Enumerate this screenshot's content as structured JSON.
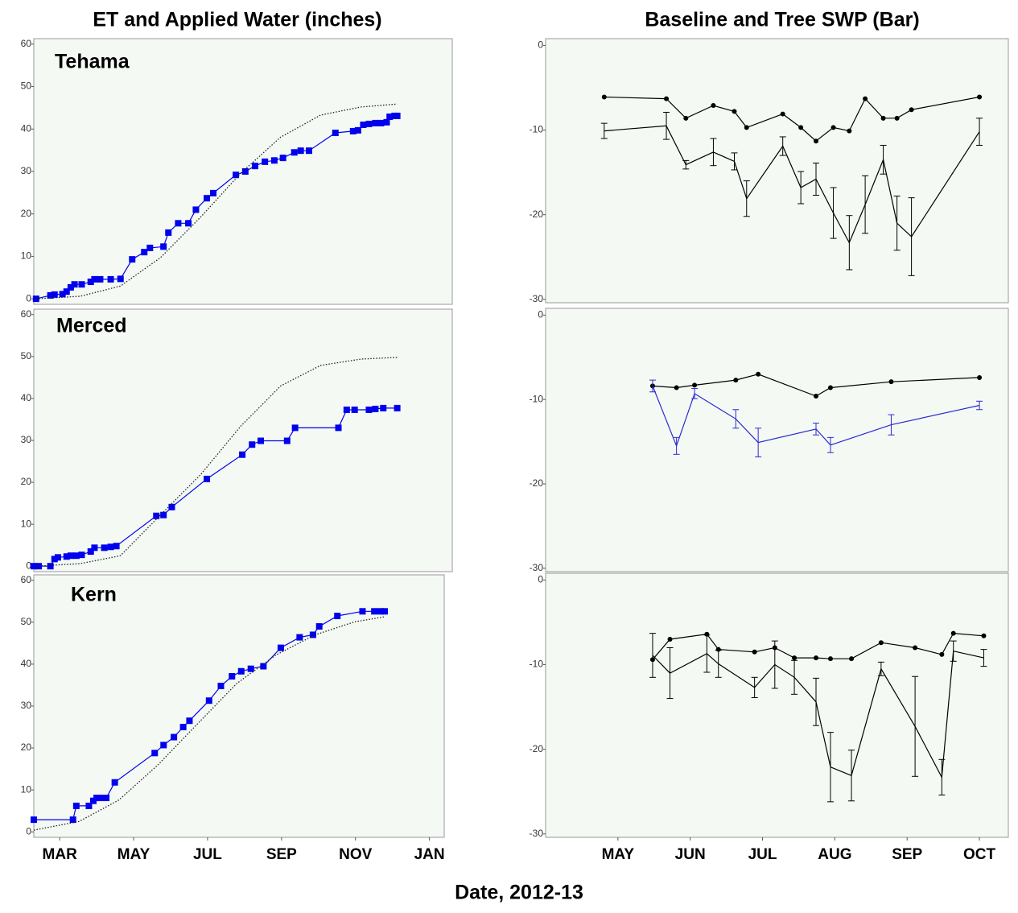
{
  "figure": {
    "left_title": "ET and Applied Water (inches)",
    "right_title": "Baseline and Tree SWP (Bar)",
    "x_label": "Date, 2012-13"
  },
  "chart_data": [
    {
      "type": "line",
      "title": "Tehama",
      "xlim": [
        2.3,
        13.4
      ],
      "ylim": [
        -1.3,
        61.3
      ],
      "yticks": [
        0,
        10,
        20,
        30,
        40,
        50,
        60
      ],
      "series": [
        {
          "color": "#0000ee",
          "marker": "square",
          "line_style": "solid",
          "x": [
            2.36,
            2.74,
            2.85,
            3.06,
            3.17,
            3.28,
            3.38,
            3.57,
            3.81,
            3.91,
            4.06,
            4.34,
            4.6,
            4.91,
            5.23,
            5.38,
            5.74,
            5.87,
            6.13,
            6.4,
            6.6,
            6.89,
            7.06,
            7.66,
            7.91,
            8.17,
            8.43,
            8.68,
            8.91,
            9.21,
            9.38,
            9.6,
            10.3,
            10.77,
            10.9,
            11.04,
            11.19,
            11.36,
            11.51,
            11.66,
            11.74,
            11.87,
            11.94
          ],
          "values": [
            0,
            0.8,
            1,
            1.1,
            1.7,
            2.7,
            3.4,
            3.4,
            4,
            4.6,
            4.6,
            4.6,
            4.7,
            9.3,
            11,
            12,
            12.3,
            15.6,
            17.8,
            17.8,
            21,
            23.7,
            24.9,
            29.2,
            30,
            31.3,
            32.3,
            32.6,
            33.2,
            34.5,
            34.9,
            34.9,
            39.1,
            39.5,
            39.7,
            41,
            41.2,
            41.4,
            41.4,
            41.6,
            42.9,
            43.1,
            43.1
          ]
        },
        {
          "color": "#222222",
          "marker": "none",
          "line_style": "dotted",
          "x": [
            2.36,
            3.53,
            4.6,
            5.66,
            6.72,
            7.79,
            8.85,
            9.91,
            10.98,
            11.94
          ],
          "values": [
            0,
            0.6,
            3,
            9.7,
            19.2,
            29.6,
            38.1,
            43.3,
            45.2,
            45.9
          ]
        }
      ]
    },
    {
      "type": "line",
      "xlim": [
        4.0,
        10.4
      ],
      "ylim": [
        -30.4,
        0.8
      ],
      "yticks": [
        0,
        -10,
        -20,
        -30
      ],
      "series": [
        {
          "color": "#000000",
          "marker": "circle",
          "line_style": "solid",
          "x": [
            4.81,
            5.67,
            5.94,
            6.32,
            6.61,
            6.78,
            7.28,
            7.53,
            7.74,
            7.98,
            8.2,
            8.42,
            8.67,
            8.86,
            9.06,
            10.0
          ],
          "values": [
            -6.1,
            -6.3,
            -8.6,
            -7.1,
            -7.8,
            -9.7,
            -8.1,
            -9.7,
            -11.3,
            -9.7,
            -10.1,
            -6.3,
            -8.6,
            -8.6,
            -7.6,
            -6.1
          ]
        },
        {
          "color": "#000000",
          "marker": "none",
          "line_style": "solid",
          "x": [
            4.81,
            5.67,
            5.94,
            6.32,
            6.61,
            6.78,
            7.28,
            7.53,
            7.74,
            7.98,
            8.2,
            8.42,
            8.67,
            8.86,
            9.06,
            10.0
          ],
          "values": [
            -10.1,
            -9.5,
            -14.1,
            -12.6,
            -13.7,
            -18.1,
            -11.9,
            -16.8,
            -15.8,
            -19.8,
            -23.3,
            -18.8,
            -13.5,
            -21,
            -22.6,
            -10.2
          ],
          "errors": [
            0.9,
            1.6,
            0.5,
            1.6,
            1.0,
            2.1,
            1.1,
            1.9,
            1.9,
            3,
            3.2,
            3.4,
            1.7,
            3.2,
            4.6,
            1.6
          ]
        }
      ]
    },
    {
      "type": "line",
      "title": "Merced",
      "xlim": [
        2.3,
        13.4
      ],
      "ylim": [
        -1.3,
        61.3
      ],
      "yticks": [
        0,
        10,
        20,
        30,
        40,
        50,
        60
      ],
      "series": [
        {
          "color": "#0000ee",
          "marker": "square",
          "line_style": "solid",
          "x": [
            2.3,
            2.43,
            2.74,
            2.85,
            2.94,
            3.17,
            3.28,
            3.43,
            3.57,
            3.81,
            3.91,
            4.17,
            4.34,
            4.49,
            5.55,
            5.74,
            5.96,
            6.89,
            7.83,
            8.09,
            8.32,
            9.02,
            9.23,
            10.38,
            10.6,
            10.81,
            11.19,
            11.36,
            11.57,
            11.94
          ],
          "values": [
            0,
            0,
            0,
            1.7,
            2.1,
            2.3,
            2.5,
            2.5,
            2.7,
            3.5,
            4.4,
            4.4,
            4.6,
            4.8,
            12,
            12.2,
            14.1,
            20.8,
            26.6,
            29,
            29.9,
            29.9,
            33,
            33,
            37.3,
            37.3,
            37.3,
            37.5,
            37.7,
            37.7
          ]
        },
        {
          "color": "#222222",
          "marker": "none",
          "line_style": "dotted",
          "x": [
            2.36,
            3.53,
            4.6,
            5.66,
            6.72,
            7.79,
            8.85,
            9.91,
            10.98,
            11.94
          ],
          "values": [
            0,
            0.6,
            2.5,
            12.2,
            21.8,
            33.4,
            43,
            47.9,
            49.4,
            49.8
          ]
        }
      ]
    },
    {
      "type": "line",
      "xlim": [
        4.0,
        10.4
      ],
      "ylim": [
        -30.4,
        0.8
      ],
      "yticks": [
        0,
        -10,
        -20,
        -30
      ],
      "series": [
        {
          "color": "#000000",
          "marker": "circle",
          "line_style": "solid",
          "x": [
            5.48,
            5.81,
            6.06,
            6.63,
            6.94,
            7.74,
            7.94,
            8.78,
            10.0
          ],
          "values": [
            -8.4,
            -8.6,
            -8.3,
            -7.7,
            -7.0,
            -9.6,
            -8.6,
            -7.9,
            -7.4
          ]
        },
        {
          "color": "#2a2ad0",
          "marker": "none",
          "line_style": "solid",
          "x": [
            5.48,
            5.81,
            6.06,
            6.63,
            6.94,
            7.74,
            7.94,
            8.78,
            10.0
          ],
          "values": [
            -8.4,
            -15.5,
            -9.3,
            -12.3,
            -15.1,
            -13.5,
            -15.4,
            -13,
            -10.7
          ],
          "errors": [
            0.7,
            1.0,
            0.6,
            1.1,
            1.7,
            0.7,
            0.9,
            1.2,
            0.5
          ]
        }
      ]
    },
    {
      "type": "line",
      "title": "Kern",
      "xlim": [
        2.3,
        13.4
      ],
      "ylim": [
        -1.3,
        61.3
      ],
      "yticks": [
        0,
        10,
        20,
        30,
        40,
        50,
        60
      ],
      "xticks": [
        {
          "value": 3,
          "label": "MAR"
        },
        {
          "value": 5,
          "label": "MAY"
        },
        {
          "value": 7,
          "label": "JUL"
        },
        {
          "value": 9,
          "label": "SEP"
        },
        {
          "value": 11,
          "label": "NOV"
        },
        {
          "value": 13,
          "label": "JAN"
        }
      ],
      "series": [
        {
          "color": "#0000ee",
          "marker": "square",
          "line_style": "solid",
          "x": [
            2.3,
            3.36,
            3.45,
            3.79,
            3.91,
            4.0,
            4.11,
            4.26,
            4.49,
            5.57,
            5.81,
            6.09,
            6.34,
            6.51,
            7.04,
            7.36,
            7.66,
            7.91,
            8.17,
            8.51,
            8.98,
            9.49,
            9.85,
            10.02,
            10.51,
            11.19,
            11.51,
            11.68,
            11.79
          ],
          "values": [
            2.9,
            2.9,
            6.2,
            6.2,
            7.4,
            8.1,
            8.1,
            8.1,
            11.8,
            18.8,
            20.7,
            22.6,
            25,
            26.5,
            31.3,
            34.8,
            37.1,
            38.3,
            38.9,
            39.5,
            43.9,
            46.4,
            47,
            49,
            51.5,
            52.6,
            52.6,
            52.6,
            52.6
          ]
        },
        {
          "color": "#222222",
          "marker": "none",
          "line_style": "dotted",
          "x": [
            2.3,
            3.53,
            4.6,
            5.66,
            6.72,
            7.79,
            8.85,
            9.91,
            10.98,
            11.79
          ],
          "values": [
            0.4,
            2.5,
            7.6,
            16,
            25.7,
            35.4,
            42.2,
            47,
            50.1,
            51.3
          ]
        }
      ]
    },
    {
      "type": "line",
      "xlim": [
        4.0,
        10.4
      ],
      "ylim": [
        -30.4,
        0.8
      ],
      "yticks": [
        0,
        -10,
        -20,
        -30
      ],
      "xticks": [
        {
          "value": 5,
          "label": "MAY"
        },
        {
          "value": 6,
          "label": "JUN"
        },
        {
          "value": 7,
          "label": "JUL"
        },
        {
          "value": 8,
          "label": "AUG"
        },
        {
          "value": 9,
          "label": "SEP"
        },
        {
          "value": 10,
          "label": "OCT"
        }
      ],
      "series": [
        {
          "color": "#000000",
          "marker": "circle",
          "line_style": "solid",
          "x": [
            5.48,
            5.72,
            6.23,
            6.39,
            6.89,
            7.17,
            7.44,
            7.74,
            7.94,
            8.23,
            8.64,
            9.11,
            9.48,
            9.64,
            10.06
          ],
          "values": [
            -9.4,
            -7,
            -6.4,
            -8.2,
            -8.5,
            -8,
            -9.2,
            -9.2,
            -9.3,
            -9.3,
            -7.4,
            -8,
            -8.8,
            -6.3,
            -6.6
          ]
        },
        {
          "color": "#000000",
          "marker": "none",
          "line_style": "solid",
          "x": [
            5.48,
            5.72,
            6.23,
            6.39,
            6.89,
            7.17,
            7.44,
            7.74,
            7.94,
            8.23,
            8.64,
            9.11,
            9.48,
            9.64,
            10.06
          ],
          "values": [
            -8.9,
            -11,
            -8.7,
            -9.9,
            -12.7,
            -10,
            -11.5,
            -14.4,
            -22.1,
            -23.1,
            -10.5,
            -17.3,
            -23.3,
            -8.4,
            -9.2
          ],
          "errors": [
            2.6,
            3,
            2.2,
            1.6,
            1.2,
            2.8,
            2,
            2.8,
            4.1,
            3,
            0.8,
            5.9,
            2.1,
            1.2,
            1.0
          ]
        }
      ]
    }
  ]
}
